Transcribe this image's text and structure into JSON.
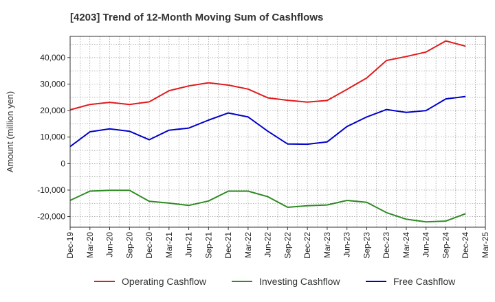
{
  "chart_data": {
    "type": "line",
    "title": "[4203]  Trend of 12-Month Moving Sum of Cashflows",
    "ylabel": "Amount (million yen)",
    "xlabel": "",
    "ylim": [
      -24000,
      48000
    ],
    "yticks": [
      -20000,
      -10000,
      0,
      10000,
      20000,
      30000,
      40000
    ],
    "ytick_labels": [
      "-20,000",
      "-10,000",
      "0",
      "10,000",
      "20,000",
      "30,000",
      "40,000"
    ],
    "x": [
      "Dec-19",
      "Mar-20",
      "Jun-20",
      "Sep-20",
      "Dec-20",
      "Mar-21",
      "Jun-21",
      "Sep-21",
      "Dec-21",
      "Mar-22",
      "Jun-22",
      "Sep-22",
      "Dec-22",
      "Mar-23",
      "Jun-23",
      "Sep-23",
      "Dec-23",
      "Mar-24",
      "Jun-24",
      "Sep-24",
      "Dec-24",
      "Mar-25"
    ],
    "x_tick_labels": [
      "Dec-19",
      "Mar-20",
      "Jun-20",
      "Sep-20",
      "Dec-20",
      "Mar-21",
      "Jun-21",
      "Sep-21",
      "Dec-21",
      "Mar-22",
      "Jun-22",
      "Sep-22",
      "Dec-22",
      "Mar-23",
      "Jun-23",
      "Sep-23",
      "Dec-23",
      "Mar-24",
      "Jun-24",
      "Sep-24",
      "Dec-24",
      "Mar-25"
    ],
    "grid": true,
    "legend_position": "bottom",
    "series": [
      {
        "name": "Operating Cashflow",
        "color": "#e31a1c",
        "values": [
          20300,
          22300,
          23100,
          22300,
          23300,
          27500,
          29300,
          30500,
          29600,
          28100,
          24800,
          23900,
          23200,
          23800,
          28000,
          32300,
          38900,
          40400,
          42100,
          46300,
          44300,
          null
        ]
      },
      {
        "name": "Investing Cashflow",
        "color": "#2e8b22",
        "values": [
          -13900,
          -10400,
          -10100,
          -10100,
          -14200,
          -14900,
          -15800,
          -14100,
          -10400,
          -10400,
          -12500,
          -16500,
          -15900,
          -15600,
          -13900,
          -14600,
          -18500,
          -21000,
          -22000,
          -21700,
          -18900,
          null
        ]
      },
      {
        "name": "Free Cashflow",
        "color": "#0000cc",
        "values": [
          6400,
          12000,
          13100,
          12200,
          9000,
          12600,
          13400,
          16400,
          19100,
          17600,
          12200,
          7400,
          7300,
          8200,
          14000,
          17600,
          20400,
          19300,
          20000,
          24400,
          25300,
          null
        ]
      }
    ]
  }
}
